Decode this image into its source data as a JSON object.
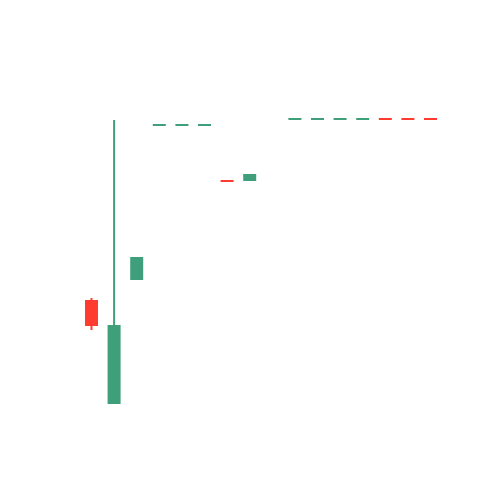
{
  "chart_data": {
    "type": "candlestick",
    "title": "",
    "xlabel": "",
    "ylabel": "",
    "axes_visible": false,
    "grid": false,
    "legend": "none",
    "colors": {
      "up": "#3f9f7a",
      "down": "#ff3b30"
    },
    "y_range": [
      0,
      520
    ],
    "candles": [
      {
        "index": 1,
        "open": 176,
        "close": 150,
        "high": 178,
        "low": 146,
        "direction": "down"
      },
      {
        "index": 2,
        "open": 72,
        "close": 151,
        "high": 356,
        "low": 72,
        "direction": "up"
      },
      {
        "index": 3,
        "open": 196,
        "close": 219,
        "high": 219,
        "low": 196,
        "direction": "up"
      },
      {
        "index": 4,
        "open": 351,
        "close": 351,
        "high": 351,
        "low": 351,
        "direction": "up"
      },
      {
        "index": 5,
        "open": 351,
        "close": 351,
        "high": 351,
        "low": 351,
        "direction": "up"
      },
      {
        "index": 6,
        "open": 351,
        "close": 351,
        "high": 351,
        "low": 351,
        "direction": "up"
      },
      {
        "index": 7,
        "open": 295,
        "close": 295,
        "high": 295,
        "low": 295,
        "direction": "down"
      },
      {
        "index": 8,
        "open": 295,
        "close": 302,
        "high": 302,
        "low": 295,
        "direction": "up"
      },
      {
        "index": 10,
        "open": 357,
        "close": 357,
        "high": 357,
        "low": 357,
        "direction": "up"
      },
      {
        "index": 11,
        "open": 357,
        "close": 357,
        "high": 357,
        "low": 357,
        "direction": "up"
      },
      {
        "index": 12,
        "open": 357,
        "close": 357,
        "high": 357,
        "low": 357,
        "direction": "up"
      },
      {
        "index": 13,
        "open": 357,
        "close": 357,
        "high": 357,
        "low": 357,
        "direction": "up"
      },
      {
        "index": 14,
        "open": 357,
        "close": 357,
        "high": 357,
        "low": 357,
        "direction": "down"
      },
      {
        "index": 15,
        "open": 357,
        "close": 357,
        "high": 357,
        "low": 357,
        "direction": "down"
      },
      {
        "index": 16,
        "open": 357,
        "close": 357,
        "high": 357,
        "low": 357,
        "direction": "down"
      }
    ]
  }
}
